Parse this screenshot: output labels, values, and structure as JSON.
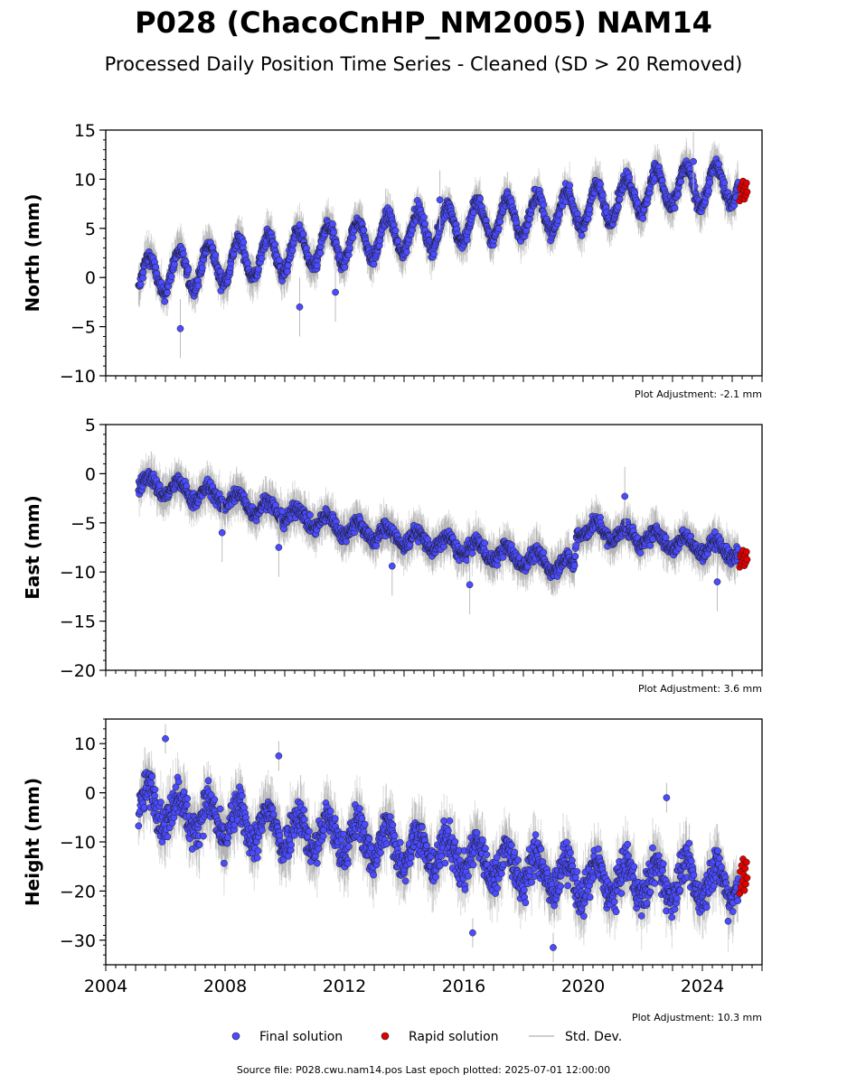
{
  "title": "P028 (ChacoCnHP_NM2005) NAM14",
  "subtitle": "Processed Daily Position Time Series - Cleaned (SD > 20 Removed)",
  "colors": {
    "final": "#4b4bff",
    "rapid": "#e00000",
    "stddev": "#bdbdbd",
    "marker_edge": "#1a1a1a"
  },
  "legend": {
    "final_label": "Final solution",
    "rapid_label": "Rapid solution",
    "stddev_label": "Std. Dev."
  },
  "footer": {
    "source": "Source file: P028.cwu.nam14.pos  Last epoch plotted: 2025-07-01 12:00:00"
  },
  "chart_data": [
    {
      "type": "scatter",
      "component": "north",
      "ylabel": "North (mm)",
      "ylim": [
        -10,
        15
      ],
      "yticks": [
        -10,
        -5,
        0,
        5,
        10,
        15
      ],
      "ytick_labels": [
        "−10",
        "−5",
        "0",
        "5",
        "10",
        "15"
      ],
      "xlim": [
        2004,
        2026
      ],
      "adjustment": "Plot Adjustment: -2.1 mm",
      "final_start": [
        2005.1,
        0.5
      ],
      "final_end": [
        2025.2,
        10.0
      ],
      "rapid_range": [
        2025.25,
        2025.5
      ],
      "rapid_values": [
        7.8,
        9.8
      ],
      "trend_samples": [
        [
          2005.2,
          0.0
        ],
        [
          2008,
          1.5
        ],
        [
          2012,
          3.5
        ],
        [
          2016,
          5.5
        ],
        [
          2020,
          7.0
        ],
        [
          2022.5,
          9.0
        ],
        [
          2025,
          9.5
        ]
      ],
      "seasonal_amplitude": 2.0,
      "scatter": 0.9,
      "sd_range": [
        1.0,
        2.5
      ],
      "outliers": [
        [
          2006.5,
          -5.2
        ],
        [
          2010.5,
          -3.0
        ],
        [
          2011.7,
          -1.5
        ],
        [
          2015.2,
          7.9
        ],
        [
          2023.7,
          11.8
        ]
      ]
    },
    {
      "type": "scatter",
      "component": "east",
      "ylabel": "East (mm)",
      "ylim": [
        -20,
        5
      ],
      "yticks": [
        -20,
        -15,
        -10,
        -5,
        0,
        5
      ],
      "ytick_labels": [
        "−20",
        "−15",
        "−10",
        "−5",
        "0",
        "5"
      ],
      "xlim": [
        2004,
        2026
      ],
      "adjustment": "Plot Adjustment: 3.6 mm",
      "final_start": [
        2005.1,
        -1.0
      ],
      "final_end": [
        2025.2,
        -8.0
      ],
      "rapid_range": [
        2025.25,
        2025.5
      ],
      "rapid_values": [
        -9.5,
        -7.8
      ],
      "trend_samples": [
        [
          2005.2,
          -1.0
        ],
        [
          2008,
          -2.5
        ],
        [
          2012,
          -5.5
        ],
        [
          2016,
          -7.5
        ],
        [
          2019.7,
          -9.5
        ],
        [
          2019.8,
          -5.5
        ],
        [
          2022,
          -6.5
        ],
        [
          2025,
          -7.8
        ]
      ],
      "seasonal_amplitude": 0.8,
      "scatter": 0.9,
      "sd_range": [
        1.0,
        2.5
      ],
      "outliers": [
        [
          2007.9,
          -6.0
        ],
        [
          2009.8,
          -7.5
        ],
        [
          2013.6,
          -9.4
        ],
        [
          2016.2,
          -11.3
        ],
        [
          2021.4,
          -2.3
        ],
        [
          2024.5,
          -11.0
        ]
      ]
    },
    {
      "type": "scatter",
      "component": "height",
      "ylabel": "Height (mm)",
      "ylim": [
        -35,
        15
      ],
      "yticks": [
        -30,
        -20,
        -10,
        0,
        10
      ],
      "ytick_labels": [
        "−30",
        "−20",
        "−10",
        "0",
        "10"
      ],
      "xlim": [
        2004,
        2026
      ],
      "xticks": [
        2004,
        2008,
        2012,
        2016,
        2020,
        2024
      ],
      "xtick_labels": [
        "2004",
        "2008",
        "2012",
        "2016",
        "2020",
        "2024"
      ],
      "adjustment": "Plot Adjustment: 10.3 mm",
      "final_start": [
        2005.1,
        -2.0
      ],
      "final_end": [
        2025.2,
        -18.0
      ],
      "rapid_range": [
        2025.25,
        2025.5
      ],
      "rapid_values": [
        -20.5,
        -13.5
      ],
      "trend_samples": [
        [
          2005.2,
          -2.0
        ],
        [
          2008,
          -6.0
        ],
        [
          2012,
          -9.0
        ],
        [
          2016,
          -13.0
        ],
        [
          2020,
          -18.0
        ],
        [
          2025,
          -18.0
        ]
      ],
      "seasonal_amplitude": 3.5,
      "scatter": 4.5,
      "sd_range": [
        3.0,
        7.0
      ],
      "outliers": [
        [
          2006.0,
          11.0
        ],
        [
          2009.8,
          7.5
        ],
        [
          2016.3,
          -28.5
        ],
        [
          2019.0,
          -31.5
        ],
        [
          2022.8,
          -1.0
        ]
      ]
    }
  ]
}
